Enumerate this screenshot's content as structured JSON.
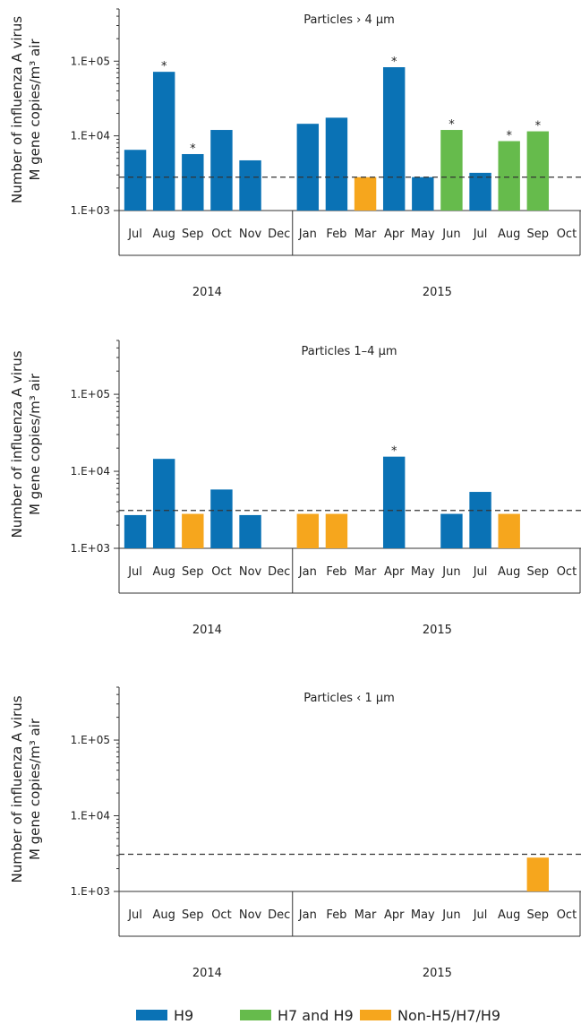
{
  "colors": {
    "H9": "#0a72b5",
    "H7_H9": "#66bb4c",
    "NonH5H7H9": "#f6a61d",
    "axis": "#333333"
  },
  "legend": [
    {
      "key": "H9",
      "label": "H9"
    },
    {
      "key": "H7_H9",
      "label": "H7 and H9"
    },
    {
      "key": "NonH5H7H9",
      "label": "Non-H5/H7/H9"
    }
  ],
  "chart_data": [
    {
      "type": "bar",
      "title": "Particles › 4 µm",
      "ylabel": [
        "Number of influenza A virus",
        "M gene copies/m³ air"
      ],
      "yscale": "log",
      "ylim": [
        1000,
        500000
      ],
      "yticks": [
        1000,
        10000,
        100000
      ],
      "yticklabels": [
        "1.E+03",
        "1.E+04",
        "1.E+05"
      ],
      "threshold": 2800,
      "categories": [
        "Jul",
        "Aug",
        "Sep",
        "Oct",
        "Nov",
        "Dec",
        "Jan",
        "Feb",
        "Mar",
        "Apr",
        "May",
        "Jun",
        "Jul",
        "Aug",
        "Sep",
        "Oct"
      ],
      "years": [
        {
          "label": "2014",
          "start": 0,
          "end": 5
        },
        {
          "label": "2015",
          "start": 6,
          "end": 15
        }
      ],
      "bars": [
        {
          "index": 0,
          "value": 6500,
          "series": "H9",
          "star": false
        },
        {
          "index": 1,
          "value": 72000,
          "series": "H9",
          "star": true
        },
        {
          "index": 2,
          "value": 5700,
          "series": "H9",
          "star": true
        },
        {
          "index": 3,
          "value": 12000,
          "series": "H9",
          "star": false
        },
        {
          "index": 4,
          "value": 4700,
          "series": "H9",
          "star": false
        },
        {
          "index": 6,
          "value": 14500,
          "series": "H9",
          "star": false
        },
        {
          "index": 7,
          "value": 17500,
          "series": "H9",
          "star": false
        },
        {
          "index": 8,
          "value": 2800,
          "series": "NonH5H7H9",
          "star": false
        },
        {
          "index": 9,
          "value": 83000,
          "series": "H9",
          "star": true
        },
        {
          "index": 10,
          "value": 2800,
          "series": "H9",
          "star": false
        },
        {
          "index": 11,
          "value": 12000,
          "series": "H7_H9",
          "star": true
        },
        {
          "index": 12,
          "value": 3200,
          "series": "H9",
          "star": false
        },
        {
          "index": 13,
          "value": 8500,
          "series": "H7_H9",
          "star": true
        },
        {
          "index": 14,
          "value": 11500,
          "series": "H7_H9",
          "star": true
        }
      ]
    },
    {
      "type": "bar",
      "title": "Particles 1–4 µm",
      "ylabel": [
        "Number of influenza A virus",
        "M gene copies/m³ air"
      ],
      "yscale": "log",
      "ylim": [
        1000,
        500000
      ],
      "yticks": [
        1000,
        10000,
        100000
      ],
      "yticklabels": [
        "1.E+03",
        "1.E+04",
        "1.E+05"
      ],
      "threshold": 3100,
      "categories": [
        "Jul",
        "Aug",
        "Sep",
        "Oct",
        "Nov",
        "Dec",
        "Jan",
        "Feb",
        "Mar",
        "Apr",
        "May",
        "Jun",
        "Jul",
        "Aug",
        "Sep",
        "Oct"
      ],
      "years": [
        {
          "label": "2014",
          "start": 0,
          "end": 5
        },
        {
          "label": "2015",
          "start": 6,
          "end": 15
        }
      ],
      "bars": [
        {
          "index": 0,
          "value": 2700,
          "series": "H9",
          "star": false
        },
        {
          "index": 1,
          "value": 14500,
          "series": "H9",
          "star": false
        },
        {
          "index": 2,
          "value": 2800,
          "series": "NonH5H7H9",
          "star": false
        },
        {
          "index": 3,
          "value": 5800,
          "series": "H9",
          "star": false
        },
        {
          "index": 4,
          "value": 2700,
          "series": "H9",
          "star": false
        },
        {
          "index": 6,
          "value": 2800,
          "series": "NonH5H7H9",
          "star": false
        },
        {
          "index": 7,
          "value": 2800,
          "series": "NonH5H7H9",
          "star": false
        },
        {
          "index": 9,
          "value": 15500,
          "series": "H9",
          "star": true
        },
        {
          "index": 11,
          "value": 2800,
          "series": "H9",
          "star": false
        },
        {
          "index": 12,
          "value": 5400,
          "series": "H9",
          "star": false
        },
        {
          "index": 13,
          "value": 2800,
          "series": "NonH5H7H9",
          "star": false
        }
      ]
    },
    {
      "type": "bar",
      "title": "Particles ‹ 1 µm",
      "ylabel": [
        "Number of influenza A virus",
        "M gene copies/m³ air"
      ],
      "yscale": "log",
      "ylim": [
        1000,
        500000
      ],
      "yticks": [
        1000,
        10000,
        100000
      ],
      "yticklabels": [
        "1.E+03",
        "1.E+04",
        "1.E+05"
      ],
      "threshold": 3100,
      "categories": [
        "Jul",
        "Aug",
        "Sep",
        "Oct",
        "Nov",
        "Dec",
        "Jan",
        "Feb",
        "Mar",
        "Apr",
        "May",
        "Jun",
        "Jul",
        "Aug",
        "Sep",
        "Oct"
      ],
      "years": [
        {
          "label": "2014",
          "start": 0,
          "end": 5
        },
        {
          "label": "2015",
          "start": 6,
          "end": 15
        }
      ],
      "bars": [
        {
          "index": 14,
          "value": 2800,
          "series": "NonH5H7H9",
          "star": false
        }
      ]
    }
  ]
}
